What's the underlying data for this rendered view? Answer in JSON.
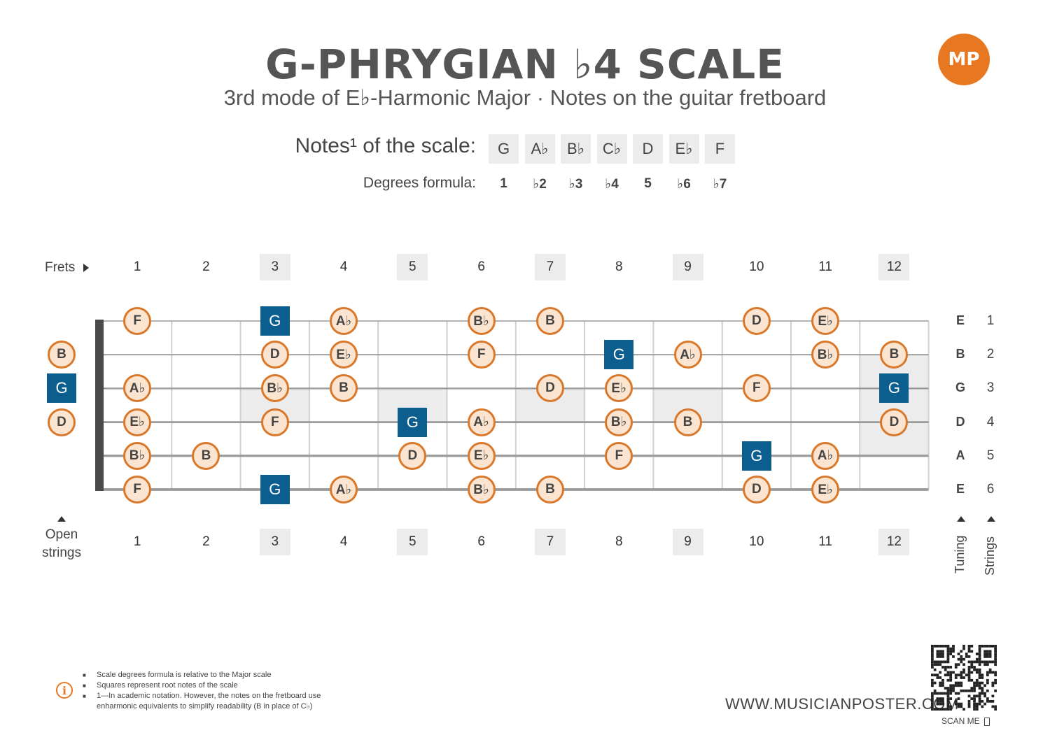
{
  "title": "G-PHRYGIAN ♭4 SCALE",
  "subtitle": "3rd mode of E♭-Harmonic Major  ·  Notes on the guitar fretboard",
  "logo_text": "MP",
  "notes_label": "Notes¹ of the scale:",
  "degrees_label": "Degrees formula:",
  "scale_notes": [
    "G",
    "A♭",
    "B♭",
    "C♭",
    "D",
    "E♭",
    "F"
  ],
  "degrees": [
    "1",
    "♭2",
    "♭3",
    "♭4",
    "5",
    "♭6",
    "♭7"
  ],
  "frets_label": "Frets",
  "open_label": "Open strings",
  "fret_numbers": [
    "1",
    "2",
    "3",
    "4",
    "5",
    "6",
    "7",
    "8",
    "9",
    "10",
    "11",
    "12"
  ],
  "shaded_frets": [
    3,
    5,
    7,
    9,
    12
  ],
  "tuning": [
    "E",
    "B",
    "G",
    "D",
    "A",
    "E"
  ],
  "string_numbers": [
    "1",
    "2",
    "3",
    "4",
    "5",
    "6"
  ],
  "tuning_label": "Tuning",
  "strings_label": "Strings",
  "colors": {
    "root": "#0b5e8e",
    "note_border": "#d9782a",
    "note_fill": "#fbe5d0",
    "accent": "#e87722",
    "shade": "#ececec"
  },
  "open_notes": [
    {
      "string": 2,
      "note": "B",
      "root": false
    },
    {
      "string": 3,
      "note": "G",
      "root": true
    },
    {
      "string": 4,
      "note": "D",
      "root": false
    }
  ],
  "fret_notes": [
    {
      "string": 1,
      "fret": 1,
      "note": "F",
      "root": false
    },
    {
      "string": 1,
      "fret": 3,
      "note": "G",
      "root": true
    },
    {
      "string": 1,
      "fret": 4,
      "note": "A♭",
      "root": false
    },
    {
      "string": 1,
      "fret": 6,
      "note": "B♭",
      "root": false
    },
    {
      "string": 1,
      "fret": 7,
      "note": "B",
      "root": false
    },
    {
      "string": 1,
      "fret": 10,
      "note": "D",
      "root": false
    },
    {
      "string": 1,
      "fret": 11,
      "note": "E♭",
      "root": false
    },
    {
      "string": 2,
      "fret": 3,
      "note": "D",
      "root": false
    },
    {
      "string": 2,
      "fret": 4,
      "note": "E♭",
      "root": false
    },
    {
      "string": 2,
      "fret": 6,
      "note": "F",
      "root": false
    },
    {
      "string": 2,
      "fret": 8,
      "note": "G",
      "root": true
    },
    {
      "string": 2,
      "fret": 9,
      "note": "A♭",
      "root": false
    },
    {
      "string": 2,
      "fret": 11,
      "note": "B♭",
      "root": false
    },
    {
      "string": 2,
      "fret": 12,
      "note": "B",
      "root": false
    },
    {
      "string": 3,
      "fret": 1,
      "note": "A♭",
      "root": false
    },
    {
      "string": 3,
      "fret": 3,
      "note": "B♭",
      "root": false
    },
    {
      "string": 3,
      "fret": 4,
      "note": "B",
      "root": false
    },
    {
      "string": 3,
      "fret": 7,
      "note": "D",
      "root": false
    },
    {
      "string": 3,
      "fret": 8,
      "note": "E♭",
      "root": false
    },
    {
      "string": 3,
      "fret": 10,
      "note": "F",
      "root": false
    },
    {
      "string": 3,
      "fret": 12,
      "note": "G",
      "root": true
    },
    {
      "string": 4,
      "fret": 1,
      "note": "E♭",
      "root": false
    },
    {
      "string": 4,
      "fret": 3,
      "note": "F",
      "root": false
    },
    {
      "string": 4,
      "fret": 5,
      "note": "G",
      "root": true
    },
    {
      "string": 4,
      "fret": 6,
      "note": "A♭",
      "root": false
    },
    {
      "string": 4,
      "fret": 8,
      "note": "B♭",
      "root": false
    },
    {
      "string": 4,
      "fret": 9,
      "note": "B",
      "root": false
    },
    {
      "string": 4,
      "fret": 12,
      "note": "D",
      "root": false
    },
    {
      "string": 5,
      "fret": 1,
      "note": "B♭",
      "root": false
    },
    {
      "string": 5,
      "fret": 2,
      "note": "B",
      "root": false
    },
    {
      "string": 5,
      "fret": 5,
      "note": "D",
      "root": false
    },
    {
      "string": 5,
      "fret": 6,
      "note": "E♭",
      "root": false
    },
    {
      "string": 5,
      "fret": 8,
      "note": "F",
      "root": false
    },
    {
      "string": 5,
      "fret": 10,
      "note": "G",
      "root": true
    },
    {
      "string": 5,
      "fret": 11,
      "note": "A♭",
      "root": false
    },
    {
      "string": 6,
      "fret": 1,
      "note": "F",
      "root": false
    },
    {
      "string": 6,
      "fret": 3,
      "note": "G",
      "root": true
    },
    {
      "string": 6,
      "fret": 4,
      "note": "A♭",
      "root": false
    },
    {
      "string": 6,
      "fret": 6,
      "note": "B♭",
      "root": false
    },
    {
      "string": 6,
      "fret": 7,
      "note": "B",
      "root": false
    },
    {
      "string": 6,
      "fret": 10,
      "note": "D",
      "root": false
    },
    {
      "string": 6,
      "fret": 11,
      "note": "E♭",
      "root": false
    }
  ],
  "footnotes": [
    "Scale degrees formula is relative to the Major scale",
    "Squares represent root notes of the scale",
    "1—In academic notation. However, the notes on the fretboard use enharmonic equivalents to simplify readability (B in place of C♭)"
  ],
  "info_icon": "info-icon",
  "website": "WWW.MUSICIANPOSTER.COM",
  "scan_label": "SCAN ME"
}
